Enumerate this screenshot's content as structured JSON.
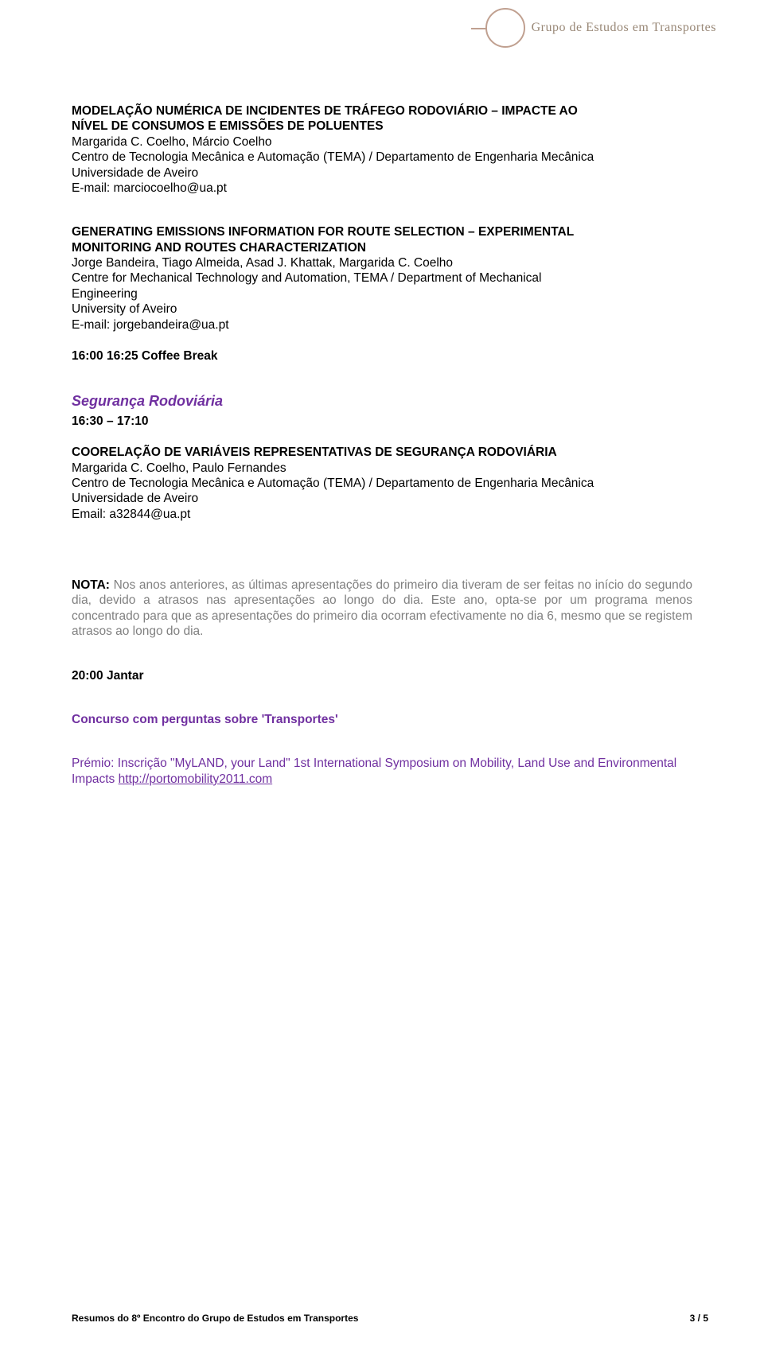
{
  "header": {
    "logo_text": "Grupo de Estudos em Transportes"
  },
  "item1": {
    "title_l1": "MODELAÇÃO NUMÉRICA DE INCIDENTES DE TRÁFEGO RODOVIÁRIO – IMPACTE AO",
    "title_l2": "NÍVEL DE CONSUMOS E EMISSÕES DE POLUENTES",
    "authors": "Margarida C. Coelho, Márcio Coelho",
    "affil": "Centro de Tecnologia Mecânica e Automação (TEMA) / Departamento de Engenharia Mecânica",
    "univ": "Universidade de Aveiro",
    "email": "E-mail: marciocoelho@ua.pt"
  },
  "item2": {
    "title_l1": "GENERATING EMISSIONS INFORMATION FOR ROUTE SELECTION – EXPERIMENTAL",
    "title_l2": "MONITORING AND ROUTES CHARACTERIZATION",
    "authors": "Jorge Bandeira, Tiago Almeida, Asad J. Khattak, Margarida C. Coelho",
    "affil_l1": "Centre for Mechanical Technology and Automation, TEMA / Department of Mechanical",
    "affil_l2": "Engineering",
    "univ": "University of Aveiro",
    "email": "E-mail: jorgebandeira@ua.pt"
  },
  "coffee_break": "16:00  16:25  Coffee Break",
  "section2": {
    "title": "Segurança Rodoviária",
    "time": "16:30 – 17:10"
  },
  "item3": {
    "title": "COORELAÇÃO DE VARIÁVEIS REPRESENTATIVAS DE SEGURANÇA RODOVIÁRIA",
    "authors": "Margarida C. Coelho, Paulo Fernandes",
    "affil": "Centro de Tecnologia Mecânica e Automação (TEMA) / Departamento de Engenharia Mecânica",
    "univ": "Universidade de Aveiro",
    "email": "Email: a32844@ua.pt"
  },
  "note": {
    "label": "NOTA:",
    "body": " Nos anos anteriores, as últimas apresentações do primeiro dia tiveram de ser feitas no início do segundo dia, devido a atrasos nas apresentações ao longo do dia. Este ano, opta-se por um programa menos concentrado para que as apresentações do primeiro dia ocorram efectivamente no dia 6, mesmo que se registem atrasos ao longo do dia."
  },
  "dinner": "20:00 Jantar",
  "contest": "Concurso com perguntas sobre 'Transportes'",
  "prize": {
    "text": "Prémio: Inscrição \"MyLAND, your Land\" 1st International Symposium on Mobility, Land Use and Environmental Impacts   ",
    "link": "http://portomobility2011.com"
  },
  "footer": {
    "left": "Resumos do 8º Encontro do Grupo de Estudos em Transportes",
    "right": "3 / 5"
  },
  "colors": {
    "purple": "#7030a0",
    "gray": "#808080",
    "black": "#000000",
    "logo": "#c0a090",
    "logo_text": "#998877"
  },
  "fonts": {
    "body_size_pt": 11.5,
    "section_title_pt": 13.5
  }
}
